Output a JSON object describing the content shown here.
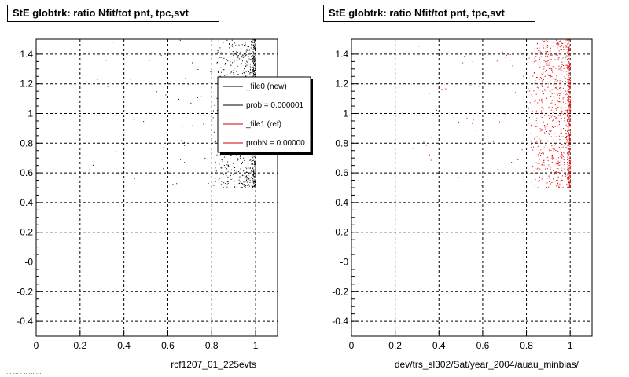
{
  "chart_data": [
    {
      "type": "scatter",
      "title": "StE globtrk: ratio Nfit/tot pnt, tpc,svt",
      "xlabel": "rcf1207_01_225evts",
      "ylabel": "",
      "xlim": [
        0,
        1.1
      ],
      "ylim": [
        -0.5,
        1.5
      ],
      "grid": true,
      "x_ticks": [
        "0",
        "0.2",
        "0.4",
        "0.6",
        "0.8",
        "1"
      ],
      "y_ticks": [
        "-0.4",
        "-0.2",
        "-0",
        "0.2",
        "0.4",
        "0.6",
        "0.8",
        "1",
        "1.2",
        "1.4"
      ],
      "marker_color": "#000000",
      "point_distribution": "Dense band of points for x between 0.8 and 1.0 with y between 0.5 and 1.5; sparse points elsewhere for x from 0.1 to 0.8",
      "legend": {
        "placement": "top-right",
        "entries": [
          {
            "label": "_file0 (new)",
            "color": "#000000"
          },
          {
            "label": "prob = 0.000001",
            "color": "#000000"
          },
          {
            "label": "_file1 (ref)",
            "color": "#cc0000"
          },
          {
            "label": "probN = 0.00000",
            "color": "#cc0000"
          }
        ]
      }
    },
    {
      "type": "scatter",
      "title": "StE globtrk: ratio Nfit/tot pnt, tpc,svt",
      "xlabel": "dev/trs_sl302/Sat/year_2004/auau_minbias/",
      "ylabel": "",
      "xlim": [
        0,
        1.1
      ],
      "ylim": [
        -0.5,
        1.5
      ],
      "grid": true,
      "x_ticks": [
        "0",
        "0.2",
        "0.4",
        "0.6",
        "0.8",
        "1"
      ],
      "y_ticks": [
        "-0.4",
        "-0.2",
        "-0",
        "0.2",
        "0.4",
        "0.6",
        "0.8",
        "1",
        "1.2",
        "1.4"
      ],
      "marker_color": "#dd0000",
      "point_distribution": "Dense band of points for x between 0.8 and 1.0 with y between 0.5 and 1.5; sparse points elsewhere for x from 0.1 to 0.8"
    }
  ],
  "footer_text": "... ... . ...... ....",
  "colors": {
    "series_new": "#000000",
    "series_ref": "#dd0000",
    "grid": "#000000"
  }
}
